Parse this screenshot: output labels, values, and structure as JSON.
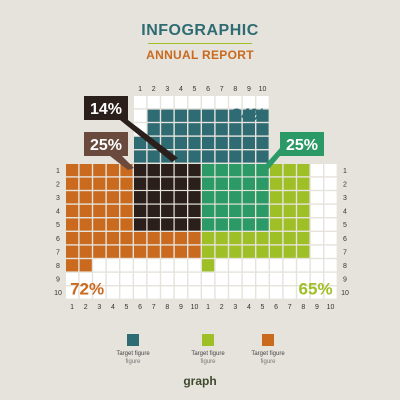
{
  "header": {
    "title": "INFOGRAPHIC",
    "subtitle": "ANNUAL REPORT"
  },
  "brand": "graph",
  "colors": {
    "background": "#e6e3dc",
    "empty_cell": "#ffffff",
    "teal": "#2e6b73",
    "green": "#9fbf27",
    "orange": "#c96a1f",
    "dark": "#2b1f1c",
    "brown": "#6b4a3e",
    "emerald": "#2c9a66",
    "olive": "#5f7a3f"
  },
  "legend": [
    {
      "title": "Target figure",
      "sub": "figure",
      "color": "#2e6b73"
    },
    {
      "title": "Target figure",
      "sub": "figure",
      "color": "#9fbf27"
    },
    {
      "title": "Target figure",
      "sub": "figure",
      "color": "#c96a1f"
    }
  ],
  "chart_data": {
    "type": "grid-infographic",
    "tick_labels": [
      "1",
      "2",
      "3",
      "4",
      "5",
      "6",
      "7",
      "8",
      "9",
      "10"
    ],
    "grids": [
      {
        "name": "top",
        "value": 84,
        "label": "84%",
        "color": "#2e6b73"
      },
      {
        "name": "left",
        "value": 72,
        "label": "72%",
        "color": "#c96a1f"
      },
      {
        "name": "right",
        "value": 65,
        "label": "65%",
        "color": "#9fbf27"
      }
    ],
    "overlaps": [
      {
        "label": "14%",
        "value": 14,
        "color": "#2b1f1c"
      },
      {
        "label": "25%",
        "value": 25,
        "color": "#6b4a3e"
      },
      {
        "label": "25%",
        "value": 25,
        "color": "#2c9a66"
      }
    ]
  }
}
